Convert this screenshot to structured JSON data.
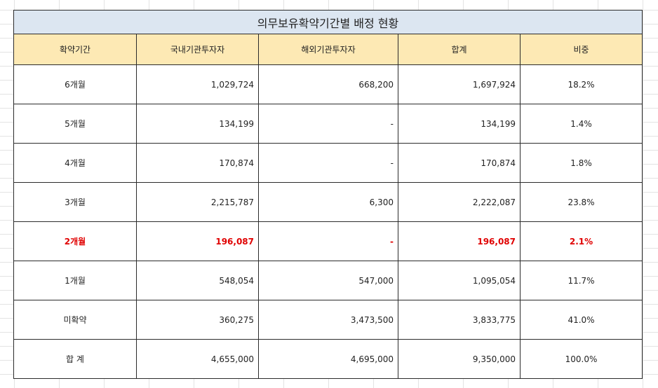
{
  "title": "의무보유확약기간별 배정 현황",
  "headers": [
    "확약기간",
    "국내기관투자자",
    "해외기관투자자",
    "합계",
    "비중"
  ],
  "rows": [
    {
      "period": "6개월",
      "domestic": "1,029,724",
      "foreign": "668,200",
      "total": "1,697,924",
      "ratio": "18.2%"
    },
    {
      "period": "5개월",
      "domestic": "134,199",
      "foreign": "-",
      "total": "134,199",
      "ratio": "1.4%"
    },
    {
      "period": "4개월",
      "domestic": "170,874",
      "foreign": "-",
      "total": "170,874",
      "ratio": "1.8%"
    },
    {
      "period": "3개월",
      "domestic": "2,215,787",
      "foreign": "6,300",
      "total": "2,222,087",
      "ratio": "23.8%"
    },
    {
      "period": "2개월",
      "domestic": "196,087",
      "foreign": "-",
      "total": "196,087",
      "ratio": "2.1%"
    },
    {
      "period": "1개월",
      "domestic": "548,054",
      "foreign": "547,000",
      "total": "1,095,054",
      "ratio": "11.7%"
    },
    {
      "period": "미확약",
      "domestic": "360,275",
      "foreign": "3,473,500",
      "total": "3,833,775",
      "ratio": "41.0%"
    },
    {
      "period": "합 계",
      "domestic": "4,655,000",
      "foreign": "4,695,000",
      "total": "9,350,000",
      "ratio": "100.0%"
    }
  ],
  "colors": {
    "title_bg": "#dce6f1",
    "header_bg": "#fde9b4",
    "highlight": "#e00000"
  }
}
